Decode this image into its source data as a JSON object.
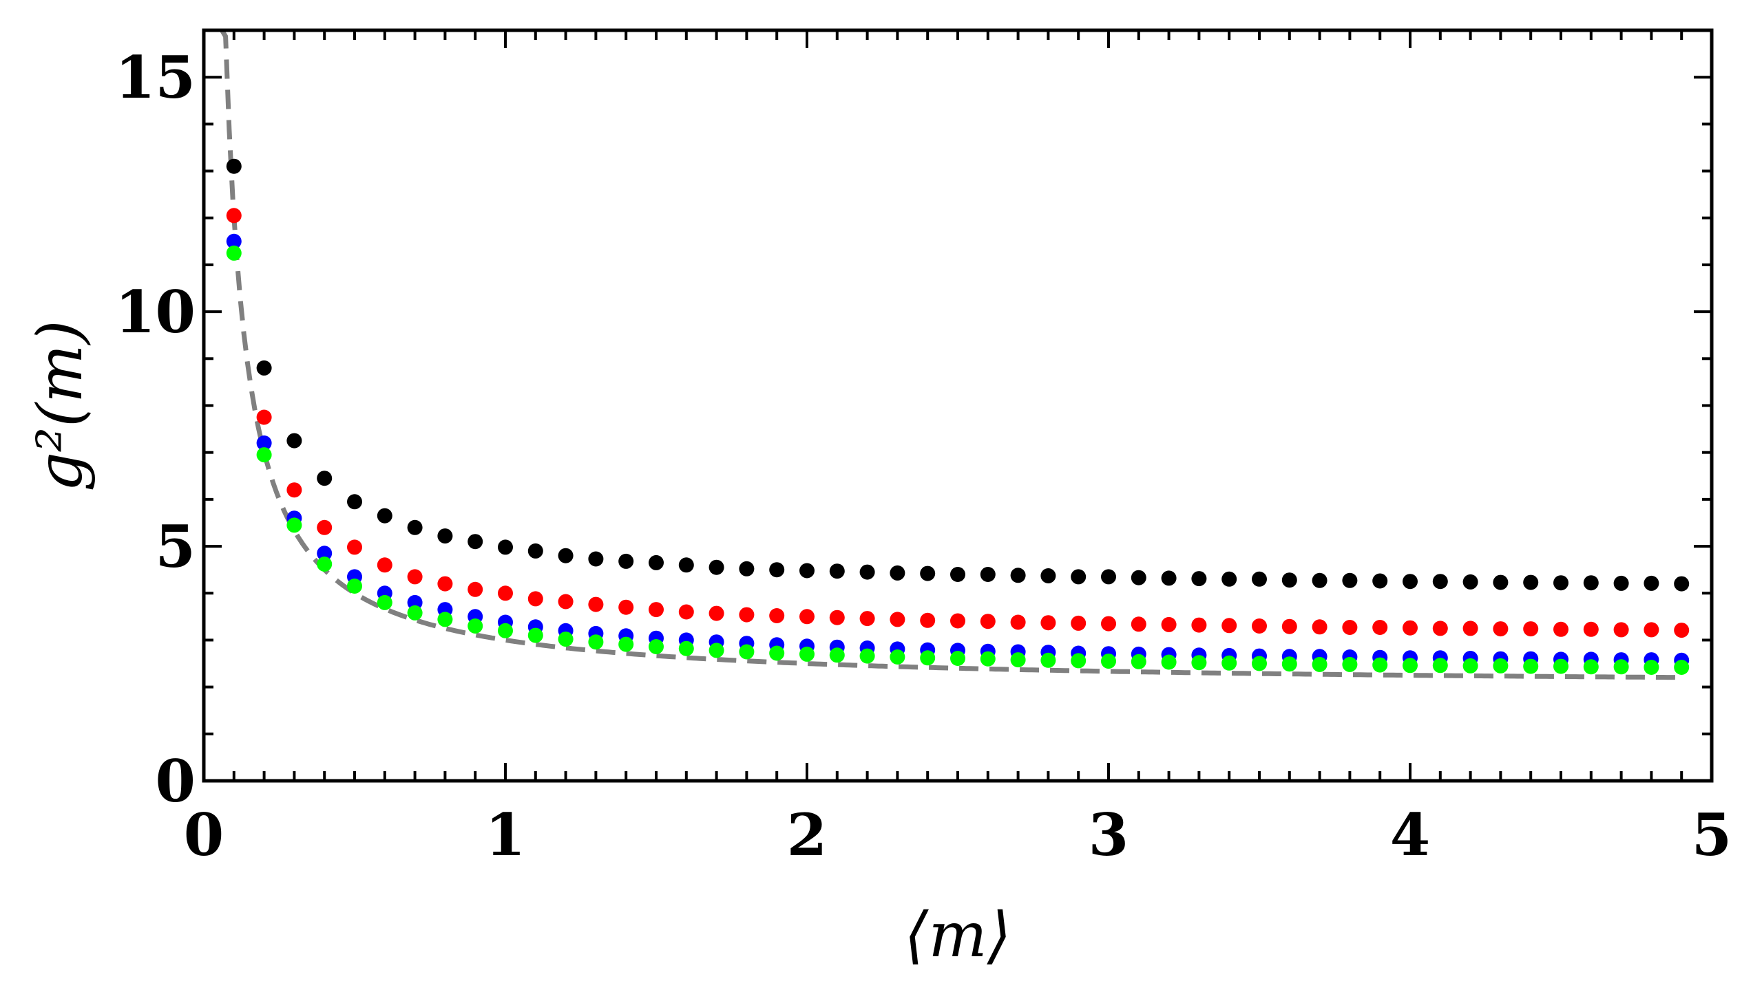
{
  "chart_data": {
    "type": "scatter",
    "title": "",
    "xlabel": "⟨m⟩",
    "ylabel": "g²(m)",
    "xlim": [
      0,
      5
    ],
    "ylim": [
      0,
      16
    ],
    "x_ticks": [
      "0",
      "1",
      "2",
      "3",
      "4",
      "5"
    ],
    "y_ticks": [
      "0",
      "5",
      "10",
      "15"
    ],
    "x": [
      0.1,
      0.2,
      0.3,
      0.4,
      0.5,
      0.6,
      0.7,
      0.8,
      0.9,
      1.0,
      1.1,
      1.2,
      1.3,
      1.4,
      1.5,
      1.6,
      1.7,
      1.8,
      1.9,
      2.0,
      2.1,
      2.2,
      2.3,
      2.4,
      2.5,
      2.6,
      2.7,
      2.8,
      2.9,
      3.0,
      3.1,
      3.2,
      3.3,
      3.4,
      3.5,
      3.6,
      3.7,
      3.8,
      3.9,
      4.0,
      4.1,
      4.2,
      4.3,
      4.4,
      4.5,
      4.6,
      4.7,
      4.8,
      4.9
    ],
    "series": [
      {
        "name": "black",
        "color": "#000000",
        "values": [
          13.1,
          8.8,
          7.25,
          6.45,
          5.95,
          5.65,
          5.4,
          5.22,
          5.1,
          4.98,
          4.9,
          4.8,
          4.73,
          4.68,
          4.65,
          4.6,
          4.55,
          4.52,
          4.5,
          4.48,
          4.47,
          4.45,
          4.43,
          4.42,
          4.4,
          4.4,
          4.38,
          4.37,
          4.35,
          4.35,
          4.33,
          4.32,
          4.31,
          4.3,
          4.3,
          4.28,
          4.27,
          4.27,
          4.26,
          4.25,
          4.25,
          4.24,
          4.23,
          4.23,
          4.22,
          4.22,
          4.21,
          4.21,
          4.2
        ]
      },
      {
        "name": "red",
        "color": "#ff0000",
        "values": [
          12.05,
          7.75,
          6.2,
          5.4,
          4.98,
          4.6,
          4.35,
          4.2,
          4.08,
          4.0,
          3.88,
          3.82,
          3.76,
          3.7,
          3.65,
          3.6,
          3.57,
          3.54,
          3.52,
          3.5,
          3.48,
          3.46,
          3.44,
          3.42,
          3.41,
          3.4,
          3.38,
          3.37,
          3.36,
          3.35,
          3.34,
          3.33,
          3.32,
          3.31,
          3.3,
          3.29,
          3.28,
          3.27,
          3.27,
          3.26,
          3.25,
          3.25,
          3.24,
          3.24,
          3.23,
          3.23,
          3.22,
          3.22,
          3.21
        ]
      },
      {
        "name": "blue",
        "color": "#0000ff",
        "values": [
          11.5,
          7.2,
          5.6,
          4.85,
          4.35,
          4.0,
          3.8,
          3.65,
          3.5,
          3.38,
          3.28,
          3.2,
          3.14,
          3.09,
          3.04,
          3.0,
          2.96,
          2.93,
          2.9,
          2.87,
          2.85,
          2.83,
          2.81,
          2.79,
          2.78,
          2.76,
          2.75,
          2.74,
          2.72,
          2.71,
          2.7,
          2.69,
          2.68,
          2.67,
          2.66,
          2.65,
          2.65,
          2.64,
          2.63,
          2.62,
          2.62,
          2.61,
          2.6,
          2.6,
          2.59,
          2.59,
          2.58,
          2.58,
          2.57
        ]
      },
      {
        "name": "green",
        "color": "#00ff00",
        "values": [
          11.25,
          6.95,
          5.45,
          4.62,
          4.15,
          3.8,
          3.58,
          3.44,
          3.3,
          3.2,
          3.1,
          3.02,
          2.96,
          2.91,
          2.86,
          2.82,
          2.78,
          2.75,
          2.72,
          2.7,
          2.68,
          2.66,
          2.64,
          2.62,
          2.61,
          2.6,
          2.58,
          2.57,
          2.56,
          2.55,
          2.54,
          2.53,
          2.52,
          2.51,
          2.5,
          2.49,
          2.48,
          2.48,
          2.47,
          2.46,
          2.46,
          2.45,
          2.45,
          2.44,
          2.44,
          2.43,
          2.43,
          2.42,
          2.42
        ]
      }
    ],
    "reference_curve": {
      "name": "dashed",
      "color": "#808080",
      "formula": "2 + 1/x",
      "x_range": [
        0.06,
        4.9
      ]
    }
  }
}
